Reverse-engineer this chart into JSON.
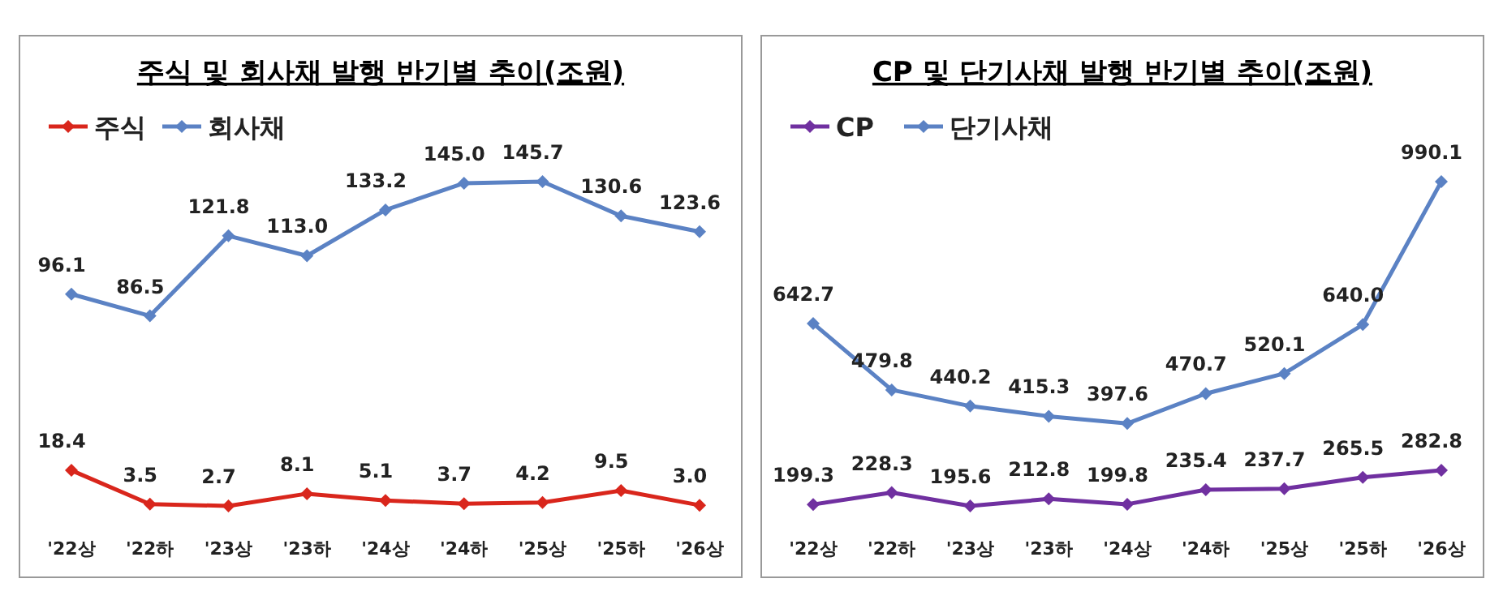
{
  "chart_data": [
    {
      "type": "line",
      "title": "주식 및 회사채 발행 반기별 추이(조원)",
      "categories": [
        "'22상",
        "'22하",
        "'23상",
        "'23하",
        "'24상",
        "'24하",
        "'25상",
        "'25하",
        "'26상"
      ],
      "legend": "top left",
      "marker": "diamond",
      "grid": false,
      "series": [
        {
          "name": "주식",
          "color": "#d9261c",
          "values": [
            18.4,
            3.5,
            2.7,
            8.1,
            5.1,
            3.7,
            4.2,
            9.5,
            3.0
          ],
          "value_labels": [
            "18.4",
            "3.5",
            "2.7",
            "8.1",
            "5.1",
            "3.7",
            "4.2",
            "9.5",
            "3.0"
          ]
        },
        {
          "name": "회사채",
          "color": "#5b82c4",
          "values": [
            96.1,
            86.5,
            121.8,
            113.0,
            133.2,
            145.0,
            145.7,
            130.6,
            123.6
          ],
          "value_labels": [
            "96.1",
            "86.5",
            "121.8",
            "113.0",
            "133.2",
            "145.0",
            "145.7",
            "130.6",
            "123.6"
          ]
        }
      ]
    },
    {
      "type": "line",
      "title": "CP 및 단기사채 발행 반기별 추이(조원)",
      "categories": [
        "'22상",
        "'22하",
        "'23상",
        "'23하",
        "'24상",
        "'24하",
        "'25상",
        "'25하",
        "'26상"
      ],
      "legend": "top left",
      "marker": "diamond",
      "grid": false,
      "series": [
        {
          "name": "CP",
          "color": "#7030a0",
          "values": [
            199.3,
            228.3,
            195.6,
            212.8,
            199.8,
            235.4,
            237.7,
            265.5,
            282.8
          ],
          "value_labels": [
            "199.3",
            "228.3",
            "195.6",
            "212.8",
            "199.8",
            "235.4",
            "237.7",
            "265.5",
            "282.8"
          ]
        },
        {
          "name": "단기사채",
          "color": "#5b82c4",
          "values": [
            642.7,
            479.8,
            440.2,
            415.3,
            397.6,
            470.7,
            520.1,
            640.0,
            990.1
          ],
          "value_labels": [
            "642.7",
            "479.8",
            "440.2",
            "415.3",
            "397.6",
            "470.7",
            "520.1",
            "640.0",
            "990.1"
          ]
        }
      ]
    }
  ]
}
